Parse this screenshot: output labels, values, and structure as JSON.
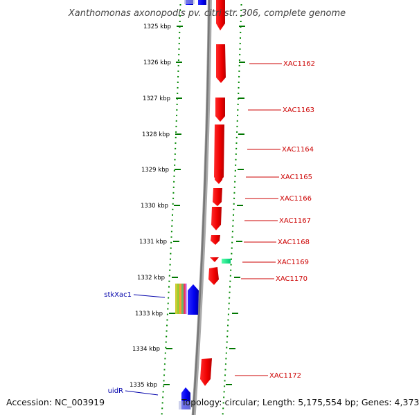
{
  "title": "Xanthomonas axonopodis pv. citri str. 306, complete genome",
  "accession": "Accession: NC_003919",
  "topology": "Topology: circular; Length: 5,175,554 bp; Genes: 4,373",
  "ticks": [
    "1325 kbp",
    "1326 kbp",
    "1327 kbp",
    "1328 kbp",
    "1329 kbp",
    "1330 kbp",
    "1331 kbp",
    "1332 kbp",
    "1333 kbp",
    "1334 kbp",
    "1335 kbp"
  ],
  "genes_right": [
    "XAC1162",
    "XAC1163",
    "XAC1164",
    "XAC1165",
    "XAC1166",
    "XAC1167",
    "XAC1168",
    "XAC1169",
    "XAC1170",
    "XAC1172"
  ],
  "genes_left": [
    "stkXac1",
    "uidR"
  ],
  "colors": {
    "forward_strand": "#ff0000",
    "reverse_strand": "#0000ff",
    "misc_feature": "#00dd88",
    "backbone": "#888888",
    "tick": "#008800",
    "label_right": "#cc0000",
    "label_left": "#0000aa"
  }
}
